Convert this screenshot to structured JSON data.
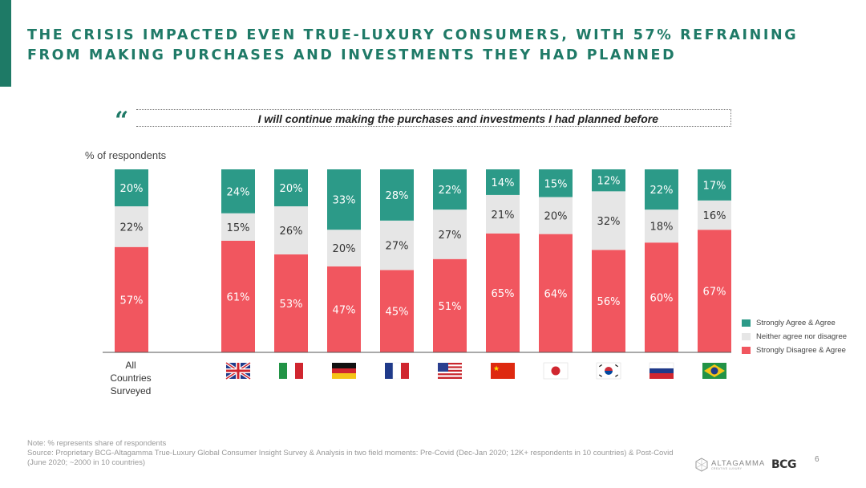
{
  "header": {
    "title": "THE CRISIS IMPACTED EVEN TRUE-LUXURY CONSUMERS, WITH 57% REFRAINING FROM MAKING PURCHASES AND INVESTMENTS THEY HAD PLANNED",
    "quote_mark": "“",
    "quote_text": "I will continue making the purchases and investments I had planned before"
  },
  "chart_data": {
    "type": "bar",
    "stacked": true,
    "ylabel": "% of respondents",
    "ylim": [
      0,
      100
    ],
    "categories": [
      "All Countries Surveyed",
      "United Kingdom",
      "Italy",
      "Germany",
      "France",
      "United States",
      "China",
      "Japan",
      "South Korea",
      "Russia",
      "Brazil"
    ],
    "first_category_label_lines": [
      "All",
      "Countries",
      "Surveyed"
    ],
    "series": [
      {
        "name": "Strongly Disagree & Agree",
        "color": "#f1565f",
        "values": [
          57,
          61,
          53,
          47,
          45,
          51,
          65,
          64,
          56,
          60,
          67
        ]
      },
      {
        "name": "Neither agree nor disagree",
        "color": "#e6e6e6",
        "values": [
          22,
          15,
          26,
          20,
          27,
          27,
          21,
          20,
          32,
          18,
          16
        ]
      },
      {
        "name": "Strongly Agree & Agree",
        "color": "#2c9a88",
        "values": [
          20,
          24,
          20,
          33,
          28,
          22,
          14,
          15,
          12,
          22,
          17
        ]
      }
    ],
    "legend": [
      "Strongly Agree & Agree",
      "Neither agree nor disagree",
      "Strongly Disagree & Agree"
    ],
    "legend_position": "right"
  },
  "legend": {
    "items": [
      {
        "label": "Strongly Agree & Agree",
        "color": "#2c9a88"
      },
      {
        "label": "Neither agree nor disagree",
        "color": "#e6e6e6"
      },
      {
        "label": "Strongly Disagree & Agree",
        "color": "#f1565f"
      }
    ]
  },
  "footer": {
    "note": "Note: % represents share of respondents",
    "source": "Source: Proprietary BCG-Altagamma True-Luxury Global Consumer Insight Survey & Analysis in two field moments: Pre-Covid (Dec-Jan 2020; 12K+ respondents in 10 countries) & Post-Covid (June 2020; ~2000 in 10 countries)",
    "page_number": "6",
    "logo_altagamma": "ALTAGAMMA",
    "logo_altagamma_sub": "CREATIVE LUXURY",
    "logo_bcg": "BCG"
  }
}
